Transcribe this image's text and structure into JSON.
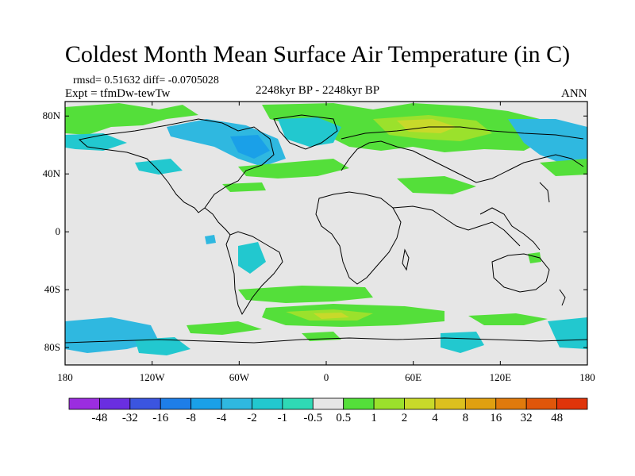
{
  "title": "Coldest Month Mean Surface Air Temperature (in C)",
  "stats": "rmsd= 0.51632  diff= -0.0705028",
  "experiment": "Expt = tfmDw-tewTw",
  "period": "2248kyr BP - 2248kyr BP",
  "season": "ANN",
  "lat_ticks": [
    {
      "value": 80,
      "label": "80N"
    },
    {
      "value": 40,
      "label": "40N"
    },
    {
      "value": 0,
      "label": "0"
    },
    {
      "value": -40,
      "label": "40S"
    },
    {
      "value": -80,
      "label": "80S"
    }
  ],
  "lon_ticks": [
    {
      "value": -180,
      "label": "180"
    },
    {
      "value": -120,
      "label": "120W"
    },
    {
      "value": -60,
      "label": "60W"
    },
    {
      "value": 0,
      "label": "0"
    },
    {
      "value": 60,
      "label": "60E"
    },
    {
      "value": 120,
      "label": "120E"
    },
    {
      "value": 180,
      "label": "180"
    }
  ],
  "colorbar": {
    "labels": [
      "-48",
      "-32",
      "-16",
      "-8",
      "-4",
      "-2",
      "-1",
      "-0.5",
      "0.5",
      "1",
      "2",
      "4",
      "8",
      "16",
      "32",
      "48"
    ],
    "colors": [
      "#9b2de0",
      "#6a2ee0",
      "#3b55e0",
      "#1e7ee8",
      "#1aa0e8",
      "#2fb8e0",
      "#22c8cf",
      "#2fd9b5",
      "#e6e6e6",
      "#54df3a",
      "#9be12c",
      "#c8d92a",
      "#dcc01e",
      "#e0a010",
      "#e07a0c",
      "#e0560a",
      "#e0340a"
    ]
  },
  "colors": {
    "land_ocean_neutral": "#e6e6e6",
    "coast": "#000000"
  }
}
